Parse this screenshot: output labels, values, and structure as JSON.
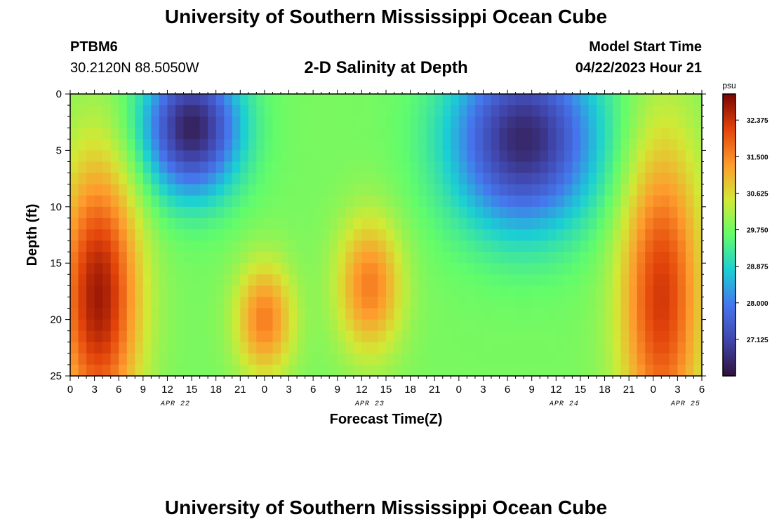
{
  "header": {
    "title": "University of Southern Mississippi Ocean Cube",
    "station": "PTBM6",
    "coords": "30.2120N  88.5050W",
    "chart_title": "2-D Salinity at Depth",
    "start_label": "Model Start Time",
    "start_value": "04/22/2023 Hour 21"
  },
  "footer": {
    "title": "University of Southern Mississippi Ocean Cube"
  },
  "chart_data": {
    "type": "heatmap",
    "title": "2-D Salinity at Depth",
    "xlabel": "Forecast Time(Z)",
    "ylabel": "Depth (ft)",
    "x_tick_labels": [
      "0",
      "3",
      "6",
      "9",
      "12",
      "15",
      "18",
      "21",
      "0",
      "3",
      "6",
      "9",
      "12",
      "15",
      "18",
      "21",
      "0",
      "3",
      "6",
      "9",
      "12",
      "15",
      "18",
      "21",
      "0",
      "3",
      "6"
    ],
    "date_labels": [
      {
        "text": "APR 22",
        "at_hours": 13
      },
      {
        "text": "APR 23",
        "at_hours": 37
      },
      {
        "text": "APR 24",
        "at_hours": 61
      },
      {
        "text": "APR 25",
        "at_hours": 76
      }
    ],
    "x_range_hours": [
      0,
      78
    ],
    "y_ticks": [
      0,
      5,
      10,
      15,
      20,
      25
    ],
    "y_range_ft": [
      0,
      25
    ],
    "colorbar": {
      "unit": "psu",
      "min": 26.25,
      "max": 33.0,
      "tick_labels": [
        "32.375",
        "31.500",
        "30.625",
        "29.750",
        "28.875",
        "28.000",
        "27.125"
      ],
      "tick_values": [
        32.375,
        31.5,
        30.625,
        29.75,
        28.875,
        28.0,
        27.125
      ]
    },
    "features": [
      {
        "hour": 3.5,
        "depth": 18,
        "value": 32.7,
        "sh": 5,
        "sd": 12
      },
      {
        "hour": 15,
        "depth": 3,
        "value": 26.5,
        "sh": 6,
        "sd": 6
      },
      {
        "hour": 24,
        "depth": 20,
        "value": 31.6,
        "sh": 3.5,
        "sd": 5
      },
      {
        "hour": 37,
        "depth": 17,
        "value": 31.6,
        "sh": 4,
        "sd": 6
      },
      {
        "hour": 56,
        "depth": 4,
        "value": 26.6,
        "sh": 9,
        "sd": 8
      },
      {
        "hour": 73,
        "depth": 18,
        "value": 32.3,
        "sh": 5,
        "sd": 14
      }
    ],
    "background_value": 29.8
  }
}
